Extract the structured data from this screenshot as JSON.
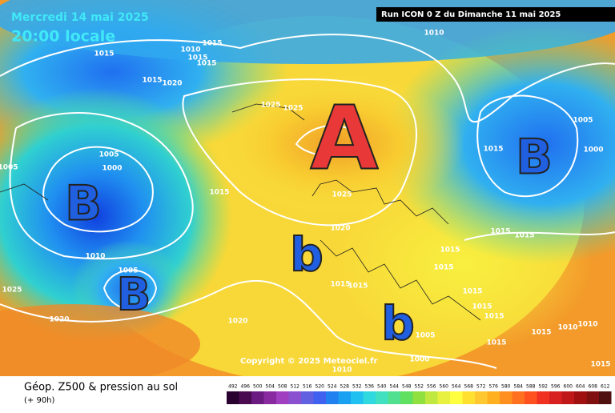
{
  "header": {
    "date": "Mercredi 14 mai 2025",
    "time": "20:00 locale",
    "run": "Run ICON 0 Z du Dimanche 11 mai 2025"
  },
  "map": {
    "pressure_labels": [
      1015,
      1015,
      1010,
      1015,
      1015,
      1015,
      1020,
      1025,
      1025,
      1005,
      1000,
      1005,
      1015,
      1025,
      1020,
      1010,
      1005,
      1015,
      1015,
      1025,
      1020,
      1020,
      1010,
      1005,
      1000,
      1015,
      1015,
      1015,
      1015,
      1015,
      1015,
      1015,
      1015,
      1010,
      1010,
      1015,
      1005,
      1000,
      1015,
      1010,
      1015
    ],
    "centers": [
      "A",
      "B",
      "B",
      "B",
      "b",
      "b"
    ],
    "copyright": "Copyright © 2025 Meteociel.fr"
  },
  "legend": {
    "title": "Géop. Z500 & pression au sol",
    "lead": "(+ 90h)",
    "scale": [
      492,
      496,
      500,
      504,
      508,
      512,
      516,
      520,
      524,
      528,
      532,
      536,
      540,
      544,
      548,
      552,
      556,
      560,
      564,
      568,
      572,
      576,
      580,
      584,
      588,
      592,
      596,
      600,
      604,
      608,
      612
    ],
    "colors": [
      "#2a0030",
      "#4a0a50",
      "#6a1a80",
      "#8a2aa0",
      "#a040c0",
      "#8a50d0",
      "#6060e0",
      "#4060f0",
      "#2080f0",
      "#1aa0f0",
      "#20c0f0",
      "#30d8e0",
      "#40e0c0",
      "#50e090",
      "#60e060",
      "#90e040",
      "#c0e840",
      "#e8f040",
      "#ffff40",
      "#ffe030",
      "#ffc830",
      "#ffb020",
      "#ff9020",
      "#ff7020",
      "#ff5020",
      "#f03020",
      "#d82020",
      "#c01818",
      "#a01010",
      "#801010",
      "#501010"
    ]
  }
}
